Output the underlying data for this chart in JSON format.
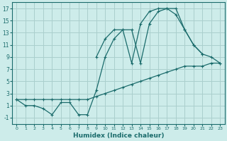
{
  "xlabel": "Humidex (Indice chaleur)",
  "xlim": [
    -0.5,
    23.5
  ],
  "ylim": [
    -2,
    18
  ],
  "xticks": [
    0,
    1,
    2,
    3,
    4,
    5,
    6,
    7,
    8,
    9,
    10,
    11,
    12,
    13,
    14,
    15,
    16,
    17,
    18,
    19,
    20,
    21,
    22,
    23
  ],
  "yticks": [
    -1,
    1,
    3,
    5,
    7,
    9,
    11,
    13,
    15,
    17
  ],
  "background_color": "#cdecea",
  "grid_color": "#aacfcd",
  "line_color": "#1a6b6b",
  "line1_x": [
    0,
    1,
    2,
    3,
    4,
    5,
    6,
    7,
    8,
    9,
    10,
    11,
    12,
    13,
    14,
    15,
    16,
    17,
    18,
    19,
    20,
    21,
    22,
    23
  ],
  "line1_y": [
    2,
    2,
    2,
    2,
    2,
    2,
    2,
    2,
    2,
    2.5,
    3,
    3.5,
    4,
    4.5,
    5,
    5.5,
    6,
    6.5,
    7,
    7.5,
    7.5,
    7.5,
    8,
    8
  ],
  "line2_x": [
    0,
    1,
    2,
    3,
    4,
    5,
    6,
    7,
    8,
    9,
    10,
    11,
    12,
    13,
    14,
    15,
    16,
    17,
    18,
    19,
    20,
    21,
    22,
    23
  ],
  "line2_y": [
    2,
    1,
    1,
    0.5,
    -0.5,
    1.5,
    1.5,
    -0.5,
    -0.5,
    3.5,
    9,
    12,
    13.5,
    13.5,
    8,
    14.5,
    16.5,
    17,
    17,
    13.5,
    11,
    9.5,
    9,
    8
  ],
  "line3_x": [
    9,
    10,
    11,
    12,
    13,
    14,
    15,
    16,
    17,
    18,
    19,
    20,
    21
  ],
  "line3_y": [
    9,
    12,
    13.5,
    13.5,
    8,
    14.5,
    16.5,
    17,
    17,
    16,
    13.5,
    11,
    9.5
  ]
}
